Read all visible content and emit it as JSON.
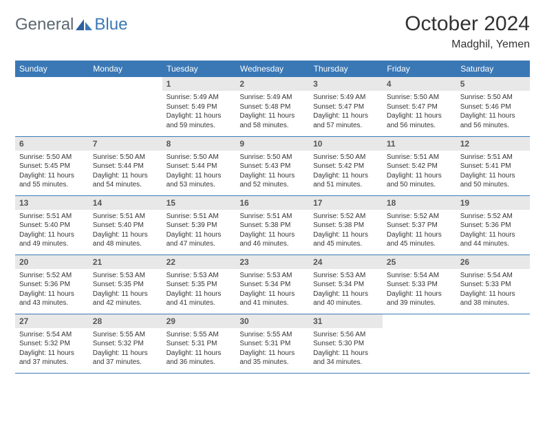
{
  "brand": {
    "general": "General",
    "blue": "Blue"
  },
  "title": "October 2024",
  "location": "Madghil, Yemen",
  "colors": {
    "header_bg": "#3a78b5",
    "header_text": "#ffffff",
    "daynum_bg": "#e8e8e8",
    "border": "#3a78b5",
    "body_bg": "#ffffff",
    "logo_gray": "#5b6770",
    "logo_blue": "#3a78b5"
  },
  "day_headers": [
    "Sunday",
    "Monday",
    "Tuesday",
    "Wednesday",
    "Thursday",
    "Friday",
    "Saturday"
  ],
  "weeks": [
    [
      null,
      null,
      {
        "n": "1",
        "sr": "5:49 AM",
        "ss": "5:49 PM",
        "dl": "11 hours and 59 minutes."
      },
      {
        "n": "2",
        "sr": "5:49 AM",
        "ss": "5:48 PM",
        "dl": "11 hours and 58 minutes."
      },
      {
        "n": "3",
        "sr": "5:49 AM",
        "ss": "5:47 PM",
        "dl": "11 hours and 57 minutes."
      },
      {
        "n": "4",
        "sr": "5:50 AM",
        "ss": "5:47 PM",
        "dl": "11 hours and 56 minutes."
      },
      {
        "n": "5",
        "sr": "5:50 AM",
        "ss": "5:46 PM",
        "dl": "11 hours and 56 minutes."
      }
    ],
    [
      {
        "n": "6",
        "sr": "5:50 AM",
        "ss": "5:45 PM",
        "dl": "11 hours and 55 minutes."
      },
      {
        "n": "7",
        "sr": "5:50 AM",
        "ss": "5:44 PM",
        "dl": "11 hours and 54 minutes."
      },
      {
        "n": "8",
        "sr": "5:50 AM",
        "ss": "5:44 PM",
        "dl": "11 hours and 53 minutes."
      },
      {
        "n": "9",
        "sr": "5:50 AM",
        "ss": "5:43 PM",
        "dl": "11 hours and 52 minutes."
      },
      {
        "n": "10",
        "sr": "5:50 AM",
        "ss": "5:42 PM",
        "dl": "11 hours and 51 minutes."
      },
      {
        "n": "11",
        "sr": "5:51 AM",
        "ss": "5:42 PM",
        "dl": "11 hours and 50 minutes."
      },
      {
        "n": "12",
        "sr": "5:51 AM",
        "ss": "5:41 PM",
        "dl": "11 hours and 50 minutes."
      }
    ],
    [
      {
        "n": "13",
        "sr": "5:51 AM",
        "ss": "5:40 PM",
        "dl": "11 hours and 49 minutes."
      },
      {
        "n": "14",
        "sr": "5:51 AM",
        "ss": "5:40 PM",
        "dl": "11 hours and 48 minutes."
      },
      {
        "n": "15",
        "sr": "5:51 AM",
        "ss": "5:39 PM",
        "dl": "11 hours and 47 minutes."
      },
      {
        "n": "16",
        "sr": "5:51 AM",
        "ss": "5:38 PM",
        "dl": "11 hours and 46 minutes."
      },
      {
        "n": "17",
        "sr": "5:52 AM",
        "ss": "5:38 PM",
        "dl": "11 hours and 45 minutes."
      },
      {
        "n": "18",
        "sr": "5:52 AM",
        "ss": "5:37 PM",
        "dl": "11 hours and 45 minutes."
      },
      {
        "n": "19",
        "sr": "5:52 AM",
        "ss": "5:36 PM",
        "dl": "11 hours and 44 minutes."
      }
    ],
    [
      {
        "n": "20",
        "sr": "5:52 AM",
        "ss": "5:36 PM",
        "dl": "11 hours and 43 minutes."
      },
      {
        "n": "21",
        "sr": "5:53 AM",
        "ss": "5:35 PM",
        "dl": "11 hours and 42 minutes."
      },
      {
        "n": "22",
        "sr": "5:53 AM",
        "ss": "5:35 PM",
        "dl": "11 hours and 41 minutes."
      },
      {
        "n": "23",
        "sr": "5:53 AM",
        "ss": "5:34 PM",
        "dl": "11 hours and 41 minutes."
      },
      {
        "n": "24",
        "sr": "5:53 AM",
        "ss": "5:34 PM",
        "dl": "11 hours and 40 minutes."
      },
      {
        "n": "25",
        "sr": "5:54 AM",
        "ss": "5:33 PM",
        "dl": "11 hours and 39 minutes."
      },
      {
        "n": "26",
        "sr": "5:54 AM",
        "ss": "5:33 PM",
        "dl": "11 hours and 38 minutes."
      }
    ],
    [
      {
        "n": "27",
        "sr": "5:54 AM",
        "ss": "5:32 PM",
        "dl": "11 hours and 37 minutes."
      },
      {
        "n": "28",
        "sr": "5:55 AM",
        "ss": "5:32 PM",
        "dl": "11 hours and 37 minutes."
      },
      {
        "n": "29",
        "sr": "5:55 AM",
        "ss": "5:31 PM",
        "dl": "11 hours and 36 minutes."
      },
      {
        "n": "30",
        "sr": "5:55 AM",
        "ss": "5:31 PM",
        "dl": "11 hours and 35 minutes."
      },
      {
        "n": "31",
        "sr": "5:56 AM",
        "ss": "5:30 PM",
        "dl": "11 hours and 34 minutes."
      },
      null,
      null
    ]
  ],
  "labels": {
    "sunrise": "Sunrise:",
    "sunset": "Sunset:",
    "daylight": "Daylight:"
  }
}
